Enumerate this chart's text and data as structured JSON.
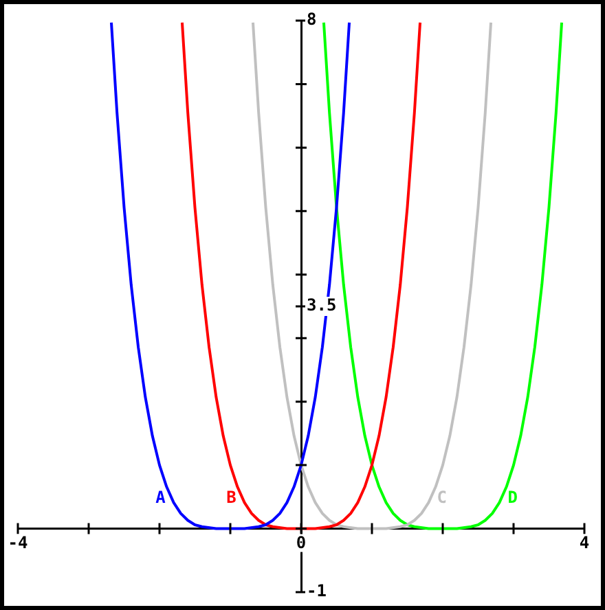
{
  "chart_data": {
    "type": "line",
    "xlim": [
      -4,
      4
    ],
    "ylim": [
      -1,
      8
    ],
    "xticks": [
      {
        "value": -4,
        "label": "-4"
      },
      {
        "value": -3,
        "label": null
      },
      {
        "value": -2,
        "label": null
      },
      {
        "value": -1,
        "label": null
      },
      0,
      {
        "value": 1,
        "label": null
      },
      {
        "value": 2,
        "label": null
      },
      {
        "value": 3,
        "label": null
      },
      4
    ],
    "yticks": [
      -1,
      {
        "value": 0,
        "label": null
      },
      {
        "value": 1,
        "label": null
      },
      {
        "value": 2,
        "label": null
      },
      {
        "value": 3,
        "label": null
      },
      3.5,
      {
        "value": 4,
        "label": null
      },
      {
        "value": 5,
        "label": null
      },
      {
        "value": 6,
        "label": null
      },
      {
        "value": 7,
        "label": null
      },
      8
    ],
    "grid": false,
    "legend": false,
    "marker": "none",
    "line_style": "solid",
    "series": [
      {
        "name": "A",
        "color": "#0000ff",
        "x": [
          -2.68,
          -2.6,
          -2.5,
          -2.4,
          -2.3,
          -2.2,
          -2.1,
          -2,
          -1.9,
          -1.8,
          -1.7,
          -1.6,
          -1.5,
          -1.4,
          -1.2,
          -1,
          -0.8,
          -0.6,
          -0.5,
          -0.4,
          -0.3,
          -0.2,
          -0.1,
          0,
          0.1,
          0.2,
          0.3,
          0.4,
          0.5,
          0.6,
          0.68
        ],
        "values": [
          7.97,
          6.55,
          5.06,
          3.84,
          2.86,
          2.07,
          1.46,
          1,
          0.66,
          0.41,
          0.24,
          0.13,
          0.06,
          0.03,
          0,
          0,
          0,
          0.03,
          0.06,
          0.13,
          0.24,
          0.41,
          0.66,
          1,
          1.46,
          2.07,
          2.86,
          3.84,
          5.06,
          6.55,
          7.97
        ]
      },
      {
        "name": "B",
        "color": "#ff0000",
        "x": [
          -1.68,
          -1.6,
          -1.5,
          -1.4,
          -1.3,
          -1.2,
          -1.1,
          -1,
          -0.9,
          -0.8,
          -0.7,
          -0.6,
          -0.5,
          -0.4,
          -0.2,
          0,
          0.2,
          0.4,
          0.5,
          0.6,
          0.7,
          0.8,
          0.9,
          1,
          1.1,
          1.2,
          1.3,
          1.4,
          1.5,
          1.6,
          1.68
        ],
        "values": [
          7.97,
          6.55,
          5.06,
          3.84,
          2.86,
          2.07,
          1.46,
          1,
          0.66,
          0.41,
          0.24,
          0.13,
          0.06,
          0.03,
          0,
          0,
          0,
          0.03,
          0.06,
          0.13,
          0.24,
          0.41,
          0.66,
          1,
          1.46,
          2.07,
          2.86,
          3.84,
          5.06,
          6.55,
          7.97
        ]
      },
      {
        "name": "C",
        "color": "#c0c0c0",
        "x": [
          -0.68,
          -0.6,
          -0.5,
          -0.4,
          -0.3,
          -0.2,
          -0.1,
          0,
          0.1,
          0.2,
          0.3,
          0.4,
          0.5,
          0.6,
          0.8,
          1,
          1.2,
          1.4,
          1.5,
          1.6,
          1.7,
          1.8,
          1.9,
          2,
          2.1,
          2.2,
          2.3,
          2.4,
          2.5,
          2.6,
          2.68
        ],
        "values": [
          7.97,
          6.55,
          5.06,
          3.84,
          2.86,
          2.07,
          1.46,
          1,
          0.66,
          0.41,
          0.24,
          0.13,
          0.06,
          0.03,
          0,
          0,
          0,
          0.03,
          0.06,
          0.13,
          0.24,
          0.41,
          0.66,
          1,
          1.46,
          2.07,
          2.86,
          3.84,
          5.06,
          6.55,
          7.97
        ]
      },
      {
        "name": "D",
        "color": "#00ff00",
        "x": [
          0.32,
          0.4,
          0.5,
          0.6,
          0.7,
          0.8,
          0.9,
          1,
          1.1,
          1.2,
          1.3,
          1.4,
          1.5,
          1.6,
          1.8,
          2,
          2.2,
          2.4,
          2.5,
          2.6,
          2.7,
          2.8,
          2.9,
          3,
          3.1,
          3.2,
          3.3,
          3.4,
          3.5,
          3.6,
          3.68
        ],
        "values": [
          7.97,
          6.55,
          5.06,
          3.84,
          2.86,
          2.07,
          1.46,
          1,
          0.66,
          0.41,
          0.24,
          0.13,
          0.06,
          0.03,
          0,
          0,
          0,
          0.03,
          0.06,
          0.13,
          0.24,
          0.41,
          0.66,
          1,
          1.46,
          2.07,
          2.86,
          3.84,
          5.06,
          6.55,
          7.97
        ]
      }
    ]
  }
}
